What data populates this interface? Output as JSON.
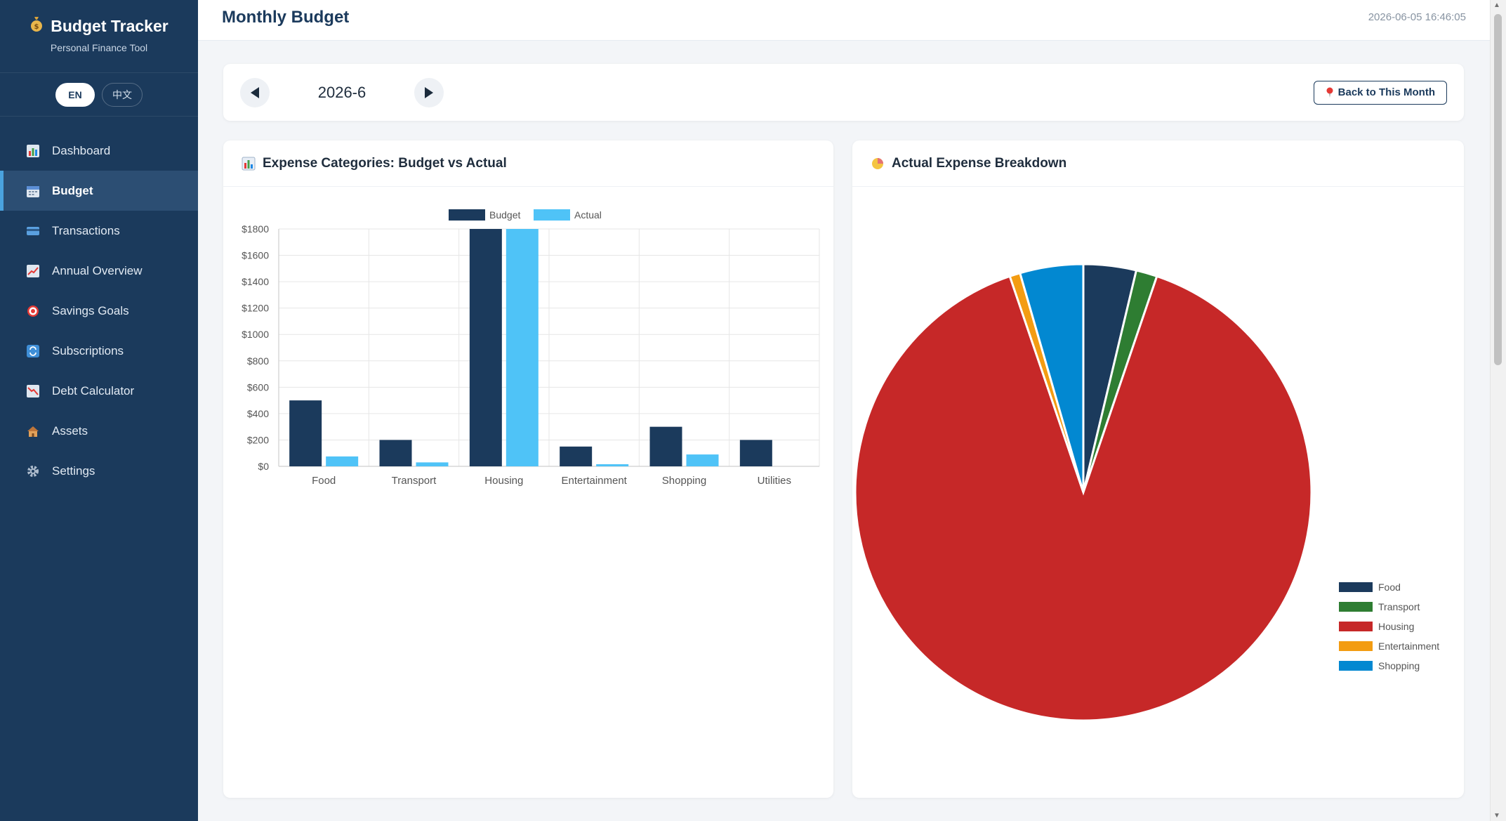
{
  "app": {
    "title": "Budget Tracker",
    "subtitle": "Personal Finance Tool",
    "logo_icon": "money-bag-icon"
  },
  "language": {
    "en": "EN",
    "zh": "中文",
    "selected": "EN"
  },
  "sidebar": {
    "items": [
      {
        "label": "Dashboard",
        "icon": "dashboard-icon",
        "active": false
      },
      {
        "label": "Budget",
        "icon": "calendar-icon",
        "active": true
      },
      {
        "label": "Transactions",
        "icon": "card-icon",
        "active": false
      },
      {
        "label": "Annual Overview",
        "icon": "trend-icon",
        "active": false
      },
      {
        "label": "Savings Goals",
        "icon": "target-icon",
        "active": false
      },
      {
        "label": "Subscriptions",
        "icon": "repeat-icon",
        "active": false
      },
      {
        "label": "Debt Calculator",
        "icon": "down-trend-icon",
        "active": false
      },
      {
        "label": "Assets",
        "icon": "house-icon",
        "active": false
      },
      {
        "label": "Settings",
        "icon": "gear-icon",
        "active": false
      }
    ]
  },
  "header": {
    "title": "Monthly Budget",
    "timestamp": "2026-06-05 16:46:05"
  },
  "month_selector": {
    "current": "2026-6",
    "back_label": "Back to This Month"
  },
  "panels": {
    "budget_vs_actual_title": "Expense Categories: Budget vs Actual",
    "breakdown_title": "Actual Expense Breakdown"
  },
  "colors": {
    "budget": "#1b3a5c",
    "actual": "#4fc3f7",
    "food": "#1b3a5c",
    "transport": "#2e7d32",
    "housing": "#c62828",
    "entertainment": "#f39c12",
    "shopping": "#0288d1"
  },
  "chart_data": [
    {
      "type": "bar",
      "categories": [
        "Food",
        "Transport",
        "Housing",
        "Entertainment",
        "Shopping",
        "Utilities"
      ],
      "series": [
        {
          "name": "Budget",
          "values": [
            500,
            200,
            1800,
            150,
            300,
            200
          ]
        },
        {
          "name": "Actual",
          "values": [
            75,
            30,
            1800,
            15,
            90,
            0
          ]
        }
      ],
      "ylim": [
        0,
        1800
      ],
      "yticks": [
        "$0",
        "$200",
        "$400",
        "$600",
        "$800",
        "$1000",
        "$1200",
        "$1400",
        "$1600",
        "$1800"
      ],
      "ytick_values": [
        0,
        200,
        400,
        600,
        800,
        1000,
        1200,
        1400,
        1600,
        1800
      ],
      "legend": "top-center",
      "grid": true
    },
    {
      "type": "pie",
      "labels": [
        "Food",
        "Transport",
        "Housing",
        "Entertainment",
        "Shopping"
      ],
      "values": [
        75,
        30,
        1800,
        15,
        90
      ],
      "legend": "right"
    }
  ]
}
